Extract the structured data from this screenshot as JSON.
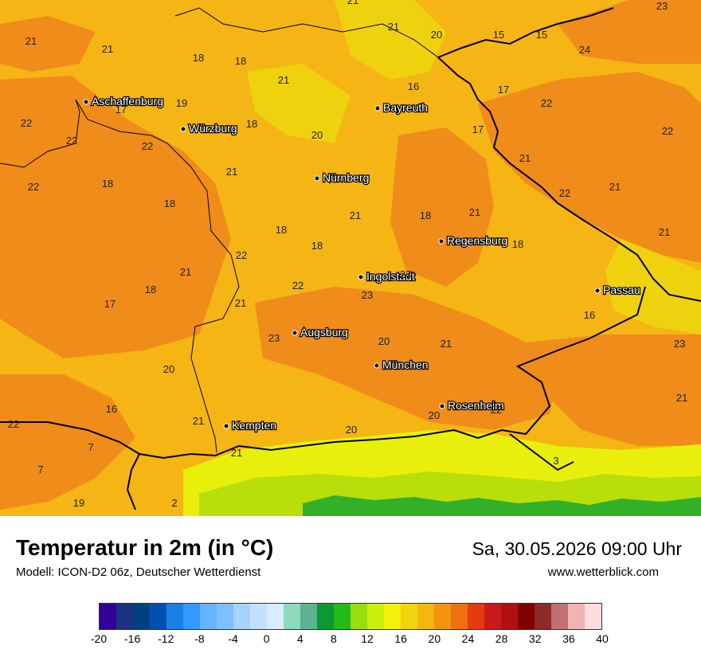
{
  "title": "Temperatur in 2m (in °C)",
  "model": "Modell: ICON-D2 06z, Deutscher Wetterdienst",
  "datetime": "Sa, 30.05.2026 09:00 Uhr",
  "website": "www.wetterblick.com",
  "colors": {
    "base_fill": "#f5b514",
    "warm_fill": "#f08c19",
    "cool_fill": "#efd20e",
    "alpine_light": "#e8ef0a",
    "alpine_green": "#b8de0c",
    "alpine_dark": "#33b02a",
    "border": "#000000"
  },
  "colorbar": {
    "colors": [
      "#330099",
      "#1a3380",
      "#004080",
      "#0050b0",
      "#1a80e6",
      "#3399ff",
      "#66b3ff",
      "#80bfff",
      "#a6d2ff",
      "#c4e0ff",
      "#d9ebff",
      "#8fd9bf",
      "#5cb38f",
      "#0a9933",
      "#22bb1a",
      "#99dd0c",
      "#ccee0c",
      "#f2f20a",
      "#f2d40e",
      "#f2b810",
      "#f29410",
      "#f07010",
      "#e63a10",
      "#c81a1a",
      "#b01010",
      "#800000",
      "#8c2a2a",
      "#c07070",
      "#f0b4b4",
      "#ffdce0"
    ],
    "ticks": [
      "-20",
      "-16",
      "-12",
      "-8",
      "-4",
      "0",
      "4",
      "8",
      "12",
      "16",
      "20",
      "24",
      "28",
      "32",
      "36",
      "40"
    ]
  },
  "cities": [
    {
      "name": "Aschaffenburg"
    },
    {
      "name": "Würzburg"
    },
    {
      "name": "Bayreuth"
    },
    {
      "name": "Nürnberg"
    },
    {
      "name": "Regensburg"
    },
    {
      "name": "Ingolstadt"
    },
    {
      "name": "Passau"
    },
    {
      "name": "Augsburg"
    },
    {
      "name": "München"
    },
    {
      "name": "Rosenheim"
    },
    {
      "name": "Kempten"
    }
  ],
  "temperature_labels": [
    "21",
    "23",
    "21",
    "21",
    "18",
    "21",
    "20",
    "15",
    "15",
    "24",
    "19",
    "17",
    "16",
    "17",
    "21",
    "18",
    "22",
    "22",
    "17",
    "22",
    "22",
    "20",
    "18",
    "22",
    "21",
    "18",
    "18",
    "21",
    "22",
    "21",
    "22",
    "21",
    "18",
    "21",
    "18",
    "18",
    "18",
    "21",
    "22",
    "21",
    "23",
    "23",
    "18",
    "17",
    "21",
    "22",
    "16",
    "20",
    "21",
    "23",
    "23",
    "20",
    "21",
    "22",
    "20",
    "16",
    "21",
    "20",
    "22",
    "21",
    "7",
    "7",
    "19",
    "2",
    "3"
  ]
}
